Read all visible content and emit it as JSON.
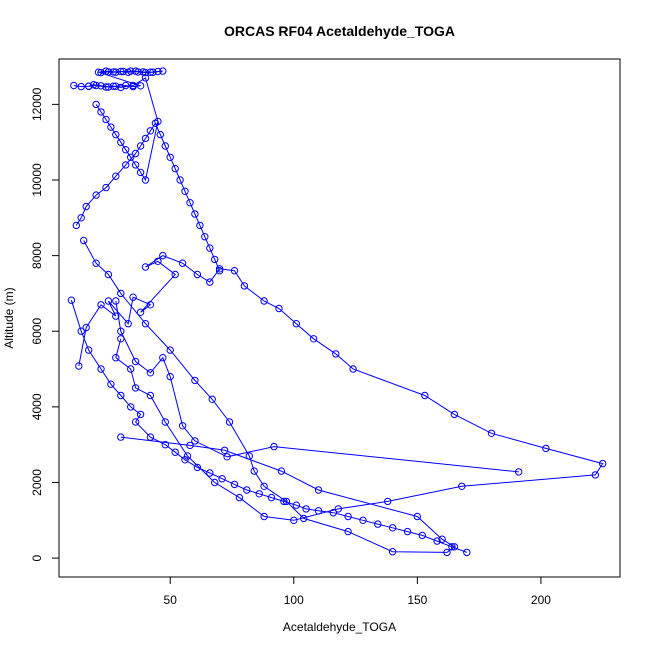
{
  "chart_data": {
    "type": "line",
    "title": "ORCAS RF04 Acetaldehyde_TOGA",
    "xlabel": "Acetaldehyde_TOGA",
    "ylabel": "Altitude (m)",
    "xlim": [
      5,
      232
    ],
    "ylim": [
      -500,
      13200
    ],
    "xticks": [
      50,
      100,
      150,
      200
    ],
    "yticks": [
      0,
      2000,
      4000,
      6000,
      8000,
      10000,
      12000
    ],
    "color": "#0000ff",
    "grid": false,
    "legend": "none",
    "series": [
      {
        "x": [
          191,
          92,
          73,
          60,
          55,
          50,
          47,
          42,
          36,
          30,
          28
        ],
        "y": [
          2280,
          2950,
          2680,
          3100,
          3500,
          4800,
          5300,
          4900,
          5200,
          6000,
          6800
        ]
      },
      {
        "x": [
          30,
          58,
          72,
          95,
          110,
          150,
          160,
          165,
          162,
          140,
          122,
          104,
          97,
          88,
          84,
          82,
          74,
          67,
          60,
          50,
          40,
          30,
          25,
          20,
          15
        ],
        "y": [
          3200,
          2980,
          2850,
          2300,
          1800,
          1100,
          500,
          300,
          150,
          170,
          700,
          1050,
          1500,
          1900,
          2300,
          2700,
          3600,
          4200,
          4700,
          5500,
          6200,
          7000,
          7500,
          7800,
          8400
        ]
      },
      {
        "x": [
          13,
          16,
          22,
          28,
          25,
          33,
          35,
          42,
          38,
          52,
          45,
          40,
          47,
          55,
          61,
          66,
          70,
          76,
          80,
          88,
          94,
          101,
          108,
          117,
          124,
          153,
          165,
          180,
          202,
          225,
          222,
          168,
          138,
          118,
          100,
          88,
          78,
          68,
          57,
          48,
          42,
          36,
          34,
          28,
          30
        ],
        "y": [
          5080,
          6100,
          6700,
          6400,
          6800,
          6200,
          6900,
          6700,
          6500,
          7500,
          7850,
          7700,
          8000,
          7800,
          7500,
          7300,
          7650,
          7600,
          7200,
          6800,
          6600,
          6200,
          5800,
          5400,
          5000,
          4300,
          3800,
          3300,
          2900,
          2500,
          2200,
          1900,
          1500,
          1300,
          1000,
          1100,
          1600,
          2000,
          2700,
          3600,
          4300,
          4500,
          5000,
          5300,
          5800
        ]
      },
      {
        "x": [
          10,
          14,
          17,
          22,
          26,
          30,
          34,
          38,
          36,
          42,
          48,
          52,
          56,
          61,
          66,
          71,
          76,
          81,
          86,
          91,
          96,
          101,
          105,
          110,
          116,
          122,
          128,
          134,
          140,
          146,
          152,
          158,
          164,
          170
        ],
        "y": [
          6820,
          6000,
          5500,
          5000,
          4600,
          4300,
          4000,
          3800,
          3600,
          3200,
          3000,
          2800,
          2600,
          2400,
          2250,
          2100,
          1950,
          1800,
          1700,
          1600,
          1500,
          1400,
          1300,
          1250,
          1200,
          1100,
          1000,
          900,
          800,
          700,
          600,
          450,
          300,
          150
        ]
      },
      {
        "x": [
          12,
          14,
          16,
          20,
          24,
          28,
          32,
          36,
          38,
          40,
          42,
          44,
          46,
          48,
          50,
          52,
          54,
          56,
          58,
          60,
          62,
          64,
          66,
          68,
          70
        ],
        "y": [
          8800,
          9000,
          9300,
          9600,
          9800,
          10100,
          10400,
          10700,
          10900,
          11100,
          11300,
          11500,
          11200,
          10900,
          10600,
          10300,
          10000,
          9700,
          9400,
          9100,
          8800,
          8500,
          8200,
          7900,
          7600
        ]
      },
      {
        "x": [
          20,
          22,
          24,
          26,
          28,
          30,
          32,
          34,
          36,
          38,
          40,
          45,
          40,
          35,
          30,
          27,
          24,
          20,
          17
        ],
        "y": [
          12000,
          11800,
          11600,
          11400,
          11200,
          11000,
          10800,
          10600,
          10400,
          10200,
          10000,
          11550,
          12700,
          12500,
          12450,
          12480,
          12460,
          12500,
          12480
        ]
      },
      {
        "x": [
          11,
          14,
          17,
          19,
          22,
          25,
          28,
          32,
          35,
          38,
          21,
          24,
          27,
          30,
          33,
          36,
          39,
          42,
          45,
          47,
          43,
          40,
          37,
          34,
          31,
          28,
          25,
          22
        ],
        "y": [
          12500,
          12470,
          12480,
          12520,
          12490,
          12460,
          12480,
          12500,
          12470,
          12490,
          12850,
          12880,
          12860,
          12870,
          12850,
          12880,
          12860,
          12850,
          12870,
          12880,
          12850,
          12840,
          12860,
          12880,
          12870,
          12850,
          12860,
          12840
        ]
      }
    ]
  }
}
